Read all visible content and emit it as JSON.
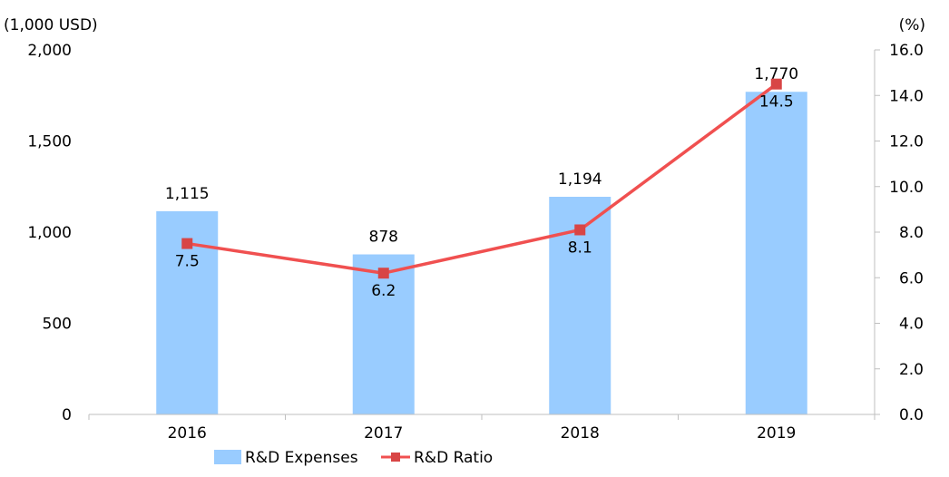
{
  "chart_data": {
    "type": "bar",
    "categories": [
      "2016",
      "2017",
      "2018",
      "2019"
    ],
    "series": [
      {
        "name": "R&D Expenses",
        "type": "bar",
        "axis": "left",
        "values": [
          1115,
          878,
          1194,
          1770
        ],
        "labels": [
          "1,115",
          "878",
          "1,194",
          "1,770"
        ]
      },
      {
        "name": "R&D Ratio",
        "type": "line",
        "axis": "right",
        "values": [
          7.5,
          6.2,
          8.1,
          14.5
        ],
        "labels": [
          "7.5",
          "6.2",
          "8.1",
          "14.5"
        ]
      }
    ],
    "left_axis": {
      "unit": "(1,000 USD)",
      "ylim": [
        0,
        2000
      ],
      "ticks": [
        0,
        500,
        1000,
        1500,
        2000
      ],
      "tick_labels": [
        "0",
        "500",
        "1,000",
        "1,500",
        "2,000"
      ]
    },
    "right_axis": {
      "unit": "(%)",
      "ylim": [
        0,
        16
      ],
      "ticks": [
        0,
        2,
        4,
        6,
        8,
        10,
        12,
        14,
        16
      ],
      "tick_labels": [
        "0.0",
        "2.0",
        "4.0",
        "6.0",
        "8.0",
        "10.0",
        "12.0",
        "14.0",
        "16.0"
      ]
    },
    "grid": false,
    "legend_position": "bottom",
    "colors": {
      "bar": "#99ccff",
      "line": "#f05050",
      "marker": "#d84545",
      "axis": "#bfbfbf"
    }
  }
}
